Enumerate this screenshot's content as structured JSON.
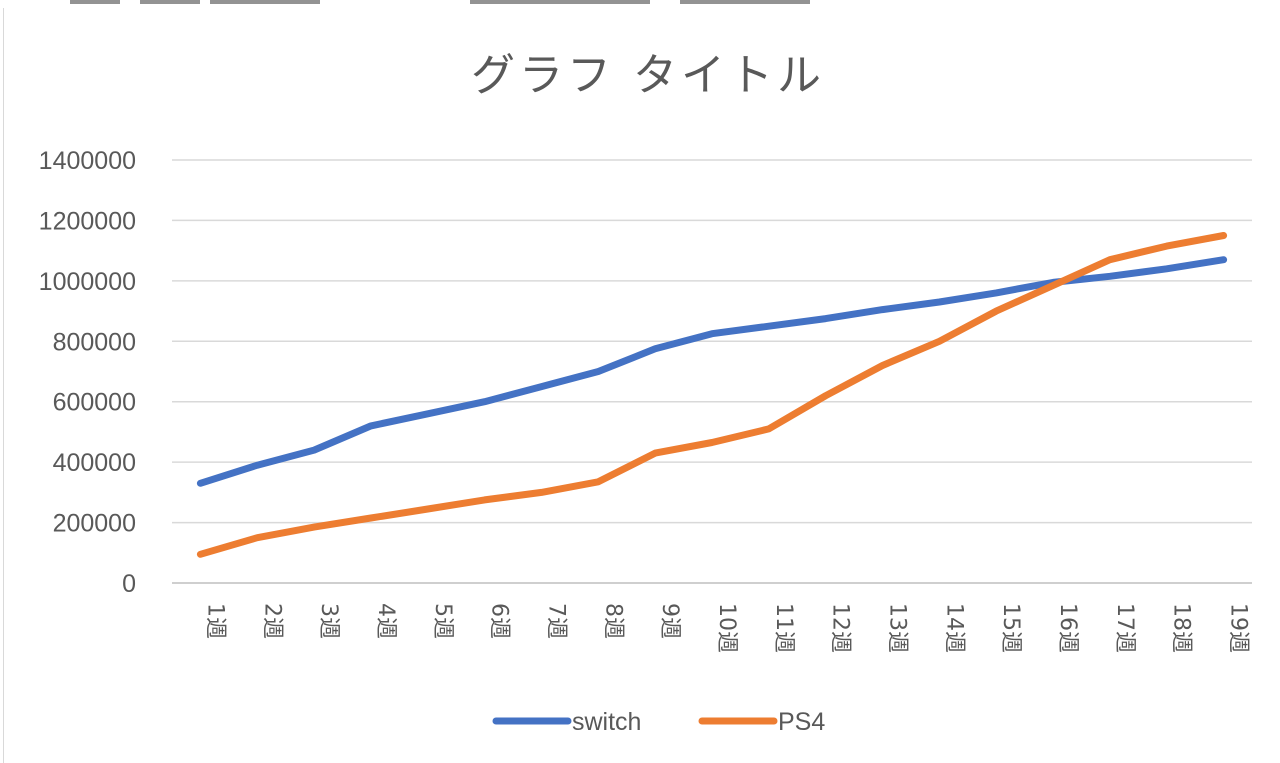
{
  "chart_data": {
    "type": "line",
    "title": "グラフ タイトル",
    "xlabel": "",
    "ylabel": "",
    "categories": [
      "1週",
      "2週",
      "3週",
      "4週",
      "5週",
      "6週",
      "7週",
      "8週",
      "9週",
      "10週",
      "11週",
      "12週",
      "13週",
      "14週",
      "15週",
      "16週",
      "17週",
      "18週",
      "19週"
    ],
    "ylim": [
      0,
      1400000
    ],
    "yticks": [
      "0",
      "200000",
      "400000",
      "600000",
      "800000",
      "1000000",
      "1200000",
      "1400000"
    ],
    "grid": true,
    "legend_position": "bottom",
    "series": [
      {
        "name": "switch",
        "color": "#4472C4",
        "values": [
          330000,
          390000,
          440000,
          520000,
          560000,
          600000,
          650000,
          700000,
          775000,
          825000,
          850000,
          875000,
          905000,
          930000,
          960000,
          995000,
          1015000,
          1040000,
          1070000
        ]
      },
      {
        "name": "PS4",
        "color": "#ED7D31",
        "values": [
          95000,
          150000,
          185000,
          215000,
          245000,
          275000,
          300000,
          335000,
          430000,
          465000,
          510000,
          620000,
          720000,
          800000,
          900000,
          985000,
          1070000,
          1115000,
          1150000
        ]
      }
    ]
  }
}
